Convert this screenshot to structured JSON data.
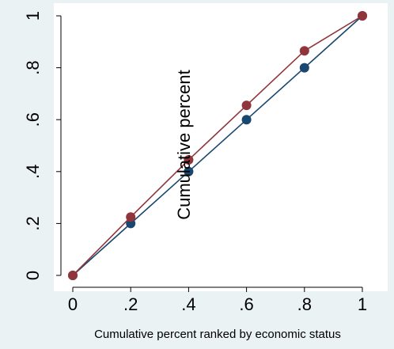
{
  "chart_data": {
    "type": "line",
    "title": "",
    "xlabel": "Cumulative percent ranked by economic status",
    "ylabel": "Cumulative percent",
    "xlim": [
      0,
      1
    ],
    "ylim": [
      0,
      1
    ],
    "x_ticks": [
      0,
      0.2,
      0.4,
      0.6,
      0.8,
      1
    ],
    "x_tick_labels": [
      "0",
      ".2",
      ".4",
      ".6",
      ".8",
      "1"
    ],
    "y_ticks": [
      0,
      0.2,
      0.4,
      0.6,
      0.8,
      1
    ],
    "y_tick_labels": [
      "0",
      ".2",
      ".4",
      ".6",
      ".8",
      "1"
    ],
    "grid": false,
    "legend": "none",
    "series": [
      {
        "color": "#1a476f",
        "x": [
          0,
          0.2,
          0.4,
          0.6,
          0.8,
          1
        ],
        "y": [
          0,
          0.2,
          0.4,
          0.6,
          0.8,
          1
        ]
      },
      {
        "color": "#90353b",
        "x": [
          0,
          0.2,
          0.4,
          0.6,
          0.8,
          1
        ],
        "y": [
          0,
          0.225,
          0.445,
          0.655,
          0.865,
          1
        ]
      }
    ],
    "colors": {
      "background": "#eaf2f3",
      "plot_background": "#ffffff"
    }
  }
}
